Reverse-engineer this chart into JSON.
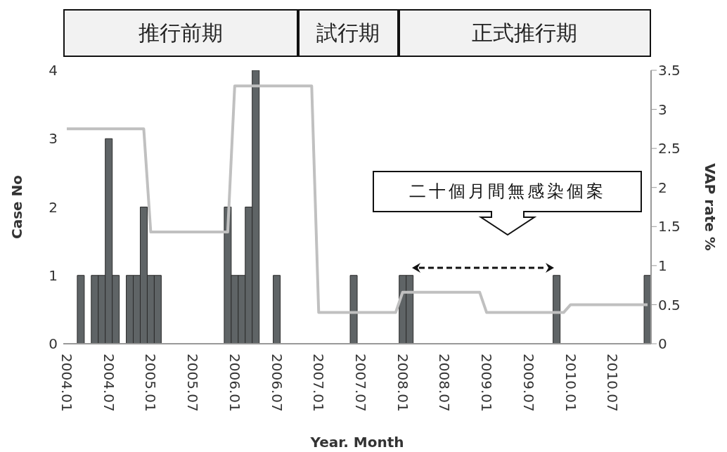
{
  "chart_data": {
    "type": "bar",
    "xlabel": "Year. Month",
    "ylabel": "Case No",
    "y2label": "VAP rate %",
    "categories": [
      "2004.01",
      null,
      null,
      null,
      null,
      null,
      "2004.07",
      null,
      null,
      null,
      null,
      null,
      "2005.01",
      null,
      null,
      null,
      null,
      null,
      "2005.07",
      null,
      null,
      null,
      null,
      null,
      "2006.01",
      null,
      null,
      null,
      null,
      null,
      "2006.07",
      null,
      null,
      null,
      null,
      null,
      "2007.01",
      null,
      null,
      null,
      null,
      null,
      "2007.07",
      null,
      null,
      null,
      null,
      null,
      "2008.01",
      null,
      null,
      null,
      null,
      null,
      "2008.07",
      null,
      null,
      null,
      null,
      null,
      "2009.01",
      null,
      null,
      null,
      null,
      null,
      "2009.07",
      null,
      null,
      null,
      null,
      null,
      "2010.01",
      null,
      null,
      null,
      null,
      null,
      "2010.07",
      null,
      null,
      null,
      null,
      null
    ],
    "series": [
      {
        "color": "#5f6466",
        "values": [
          0,
          0,
          1,
          0,
          1,
          1,
          3,
          1,
          0,
          1,
          1,
          2,
          1,
          1,
          0,
          0,
          0,
          0,
          0,
          0,
          0,
          0,
          0,
          2,
          1,
          1,
          2,
          4,
          0,
          0,
          1,
          0,
          0,
          0,
          0,
          0,
          0,
          0,
          0,
          0,
          0,
          1,
          0,
          0,
          0,
          0,
          0,
          0,
          1,
          1,
          0,
          0,
          0,
          0,
          0,
          0,
          0,
          0,
          0,
          0,
          0,
          0,
          0,
          0,
          0,
          0,
          0,
          0,
          0,
          0,
          1,
          0,
          0,
          0,
          0,
          0,
          0,
          0,
          0,
          0,
          0,
          0,
          0,
          1
        ]
      },
      {
        "type": "line",
        "axis": "y2",
        "color": "#c0c0c0",
        "values": [
          2.75,
          2.75,
          2.75,
          2.75,
          2.75,
          2.75,
          2.75,
          2.75,
          2.75,
          2.75,
          2.75,
          2.75,
          1.43,
          1.43,
          1.43,
          1.43,
          1.43,
          1.43,
          1.43,
          1.43,
          1.43,
          1.43,
          1.43,
          1.43,
          3.3,
          3.3,
          3.3,
          3.3,
          3.3,
          3.3,
          3.3,
          3.3,
          3.3,
          3.3,
          3.3,
          3.3,
          0.4,
          0.4,
          0.4,
          0.4,
          0.4,
          0.4,
          0.4,
          0.4,
          0.4,
          0.4,
          0.4,
          0.4,
          0.66,
          0.66,
          0.66,
          0.66,
          0.66,
          0.66,
          0.66,
          0.66,
          0.66,
          0.66,
          0.66,
          0.66,
          0.4,
          0.4,
          0.4,
          0.4,
          0.4,
          0.4,
          0.4,
          0.4,
          0.4,
          0.4,
          0.4,
          0.4,
          0.5,
          0.5,
          0.5,
          0.5,
          0.5,
          0.5,
          0.5,
          0.5,
          0.5,
          0.5,
          0.5,
          0.5
        ]
      }
    ],
    "ylim": [
      0,
      4
    ],
    "yticks": [
      0,
      1,
      2,
      3,
      4
    ],
    "y2lim": [
      0,
      3.5
    ],
    "y2ticks": [
      0,
      0.5,
      1,
      1.5,
      2,
      2.5,
      3,
      3.5
    ],
    "annotations": [
      "推行前期",
      "試行期",
      "正式推行期",
      "二十個月間無感染個案"
    ]
  }
}
